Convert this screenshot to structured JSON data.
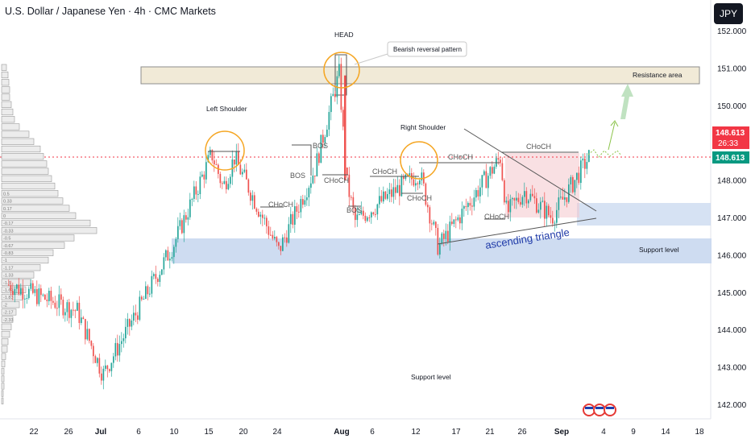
{
  "header": {
    "title": "U.S. Dollar / Japanese Yen · 4h · CMC Markets",
    "currency_label": "JPY"
  },
  "colors": {
    "up": "#26a69a",
    "down": "#ef5350",
    "resistance_fill": "#f1ead7",
    "support_fill": "#c5d6ee",
    "orange": "#f5a623",
    "price_tag_red": "#f23645",
    "price_tag_green": "#089981",
    "annotation_blue": "#1f3aa8",
    "projection_green": "#8bc34a"
  },
  "price_readout": {
    "last_price_red": "148.613",
    "countdown": "26:33",
    "last_price_green": "148.613"
  },
  "annotations": {
    "head": "HEAD",
    "bearish_reversal": "Bearish reversal pattern",
    "resistance_area": "Resistance area",
    "left_shoulder": "Left Shoulder",
    "right_shoulder": "Right Shoulder",
    "ascending_triangle": "ascending triangle",
    "support_level_band": "Support level",
    "support_level_bottom": "Support level",
    "bos_1": "BOS",
    "bos_2": "BOS",
    "bos_3": "BOS",
    "choch_1": "CHoCH",
    "choch_2": "CHoCH",
    "choch_3": "CHoCH",
    "choch_4": "CHoCH",
    "choch_5": "CHoCH",
    "choch_6": "CHoCH",
    "choch_7": "CHoCH"
  },
  "chart_data": {
    "type": "candlestick",
    "instrument": "USD/JPY",
    "timeframe": "4h",
    "y_ticks": [
      "152.000",
      "151.000",
      "150.000",
      "149.000",
      "148.000",
      "147.000",
      "146.000",
      "145.000",
      "144.000",
      "143.000",
      "142.000"
    ],
    "ylim": [
      141.7,
      152.4
    ],
    "x_ticks": [
      "22",
      "26",
      "Jul",
      "6",
      "10",
      "15",
      "20",
      "24",
      "Aug",
      "6",
      "12",
      "17",
      "21",
      "26",
      "Sep",
      "4",
      "9",
      "14",
      "18"
    ],
    "last_price": 148.613,
    "resistance_area": [
      150.55,
      151.0
    ],
    "support_area": [
      145.85,
      146.45
    ],
    "triangle_support_zone": [
      146.85,
      147.45
    ],
    "key_path": [
      {
        "t": "Jun 19",
        "price": 145.2
      },
      {
        "t": "Jun 30",
        "price": 144.5
      },
      {
        "t": "Jul 2",
        "price": 142.8
      },
      {
        "t": "Jul 10",
        "price": 146.3
      },
      {
        "t": "Jul 16",
        "price": 148.7
      },
      {
        "t": "Jul 18",
        "price": 147.8
      },
      {
        "t": "Jul 19",
        "price": 148.6
      },
      {
        "t": "Jul 24",
        "price": 146.1
      },
      {
        "t": "Jul 29",
        "price": 148.3
      },
      {
        "t": "Aug 1",
        "price": 150.85
      },
      {
        "t": "Aug 1",
        "price": 148.0
      },
      {
        "t": "Aug 5",
        "price": 146.9
      },
      {
        "t": "Aug 12",
        "price": 148.2
      },
      {
        "t": "Aug 14",
        "price": 146.2
      },
      {
        "t": "Aug 22",
        "price": 148.6
      },
      {
        "t": "Aug 23",
        "price": 147.1
      },
      {
        "t": "Aug 26",
        "price": 147.7
      },
      {
        "t": "Aug 29",
        "price": 147.0
      },
      {
        "t": "Sep 2",
        "price": 148.613
      }
    ],
    "volume_profile_labels": [
      "0.5",
      "0.33",
      "0.17",
      "0",
      "-0.17",
      "-0.33",
      "-0.5",
      "-0.67",
      "-0.83",
      "-1",
      "-1.17",
      "-1.33",
      "-1.5",
      "-1.67",
      "-1.83",
      "-2",
      "-2.17",
      "-2.33"
    ]
  }
}
